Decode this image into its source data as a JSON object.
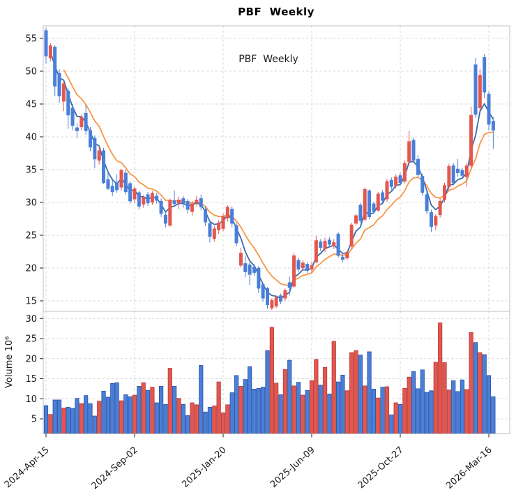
{
  "figure": {
    "title": "PBF  Weekly",
    "annotation": "PBF  Weekly"
  },
  "chart_data": {
    "type": "candlestick",
    "title": "PBF  Weekly",
    "subtitle_annotation": "PBF  Weekly",
    "legend_position": "none",
    "grid": "dashed",
    "price_axis": {
      "ticks": [
        15,
        20,
        25,
        30,
        35,
        40,
        45,
        50,
        55
      ],
      "lim": [
        13.4,
        56.9
      ]
    },
    "volume_axis": {
      "label": "Volume 10⁶",
      "ticks": [
        5,
        10,
        15,
        20,
        25,
        30
      ],
      "lim": [
        1.2,
        31.6
      ]
    },
    "x_axis": {
      "tick_week_indices": [
        0,
        20,
        40,
        60,
        80,
        100
      ],
      "tick_labels": [
        "2024-Apr-15",
        "2024-Sep-02",
        "2025-Jan-20",
        "2025-Jun-09",
        "2025-Oct-27",
        "2026-Mar-16"
      ],
      "rotation_deg": -42
    },
    "moving_averages": {
      "fast_period": 4,
      "slow_period": 10
    },
    "colors": {
      "up": "#e3574f",
      "up_edge": "#b23b3b",
      "down": "#4a7fd9",
      "down_edge": "#2a52a0",
      "ma_fast": "#3a6ba8",
      "ma_slow": "#f79646",
      "grid": "#d9d9d9",
      "spine": "#c0c0c0",
      "tick": "#333333",
      "text": "#1a1a1a"
    },
    "series": {
      "ohlc": [
        [
          56.2,
          56.6,
          51.2,
          52.3
        ],
        [
          52.0,
          54.3,
          51.5,
          53.9
        ],
        [
          53.7,
          54.0,
          46.2,
          47.7
        ],
        [
          49.7,
          50.3,
          45.2,
          46.2
        ],
        [
          45.4,
          48.5,
          43.9,
          48.1
        ],
        [
          47.0,
          47.4,
          41.2,
          43.3
        ],
        [
          44.4,
          45.0,
          41.0,
          41.7
        ],
        [
          41.4,
          42.1,
          39.8,
          40.9
        ],
        [
          41.5,
          43.4,
          41.0,
          43.0
        ],
        [
          43.6,
          44.9,
          40.3,
          40.9
        ],
        [
          41.0,
          41.5,
          37.8,
          38.4
        ],
        [
          39.8,
          40.2,
          35.2,
          36.6
        ],
        [
          36.4,
          38.6,
          35.8,
          37.9
        ],
        [
          37.9,
          38.3,
          32.8,
          33.0
        ],
        [
          33.5,
          34.8,
          31.9,
          32.1
        ],
        [
          32.5,
          33.7,
          31.0,
          31.6
        ],
        [
          33.0,
          34.3,
          31.5,
          31.9
        ],
        [
          32.3,
          35.1,
          31.8,
          34.9
        ],
        [
          34.5,
          35.0,
          31.2,
          31.6
        ],
        [
          32.9,
          33.2,
          29.8,
          30.2
        ],
        [
          30.5,
          32.4,
          29.9,
          32.1
        ],
        [
          31.5,
          31.8,
          28.9,
          29.4
        ],
        [
          29.7,
          31.1,
          29.2,
          30.8
        ],
        [
          31.2,
          31.6,
          29.5,
          29.9
        ],
        [
          30.0,
          31.7,
          29.6,
          31.4
        ],
        [
          31.0,
          31.5,
          29.8,
          30.3
        ],
        [
          30.2,
          30.6,
          27.8,
          28.3
        ],
        [
          28.1,
          28.5,
          26.2,
          26.8
        ],
        [
          26.5,
          30.6,
          26.3,
          30.3
        ],
        [
          30.3,
          31.8,
          29.3,
          29.8
        ],
        [
          29.9,
          30.9,
          29.0,
          30.4
        ],
        [
          30.6,
          31.0,
          29.2,
          29.9
        ],
        [
          30.2,
          30.5,
          28.3,
          28.9
        ],
        [
          28.6,
          30.2,
          28.0,
          29.8
        ],
        [
          29.9,
          31.0,
          29.4,
          30.4
        ],
        [
          30.6,
          31.2,
          28.8,
          29.3
        ],
        [
          29.0,
          29.4,
          26.4,
          27.0
        ],
        [
          26.8,
          27.2,
          23.9,
          24.8
        ],
        [
          24.5,
          26.4,
          24.0,
          26.0
        ],
        [
          25.8,
          27.3,
          25.2,
          26.9
        ],
        [
          26.0,
          28.3,
          25.6,
          27.9
        ],
        [
          27.6,
          29.6,
          27.1,
          29.3
        ],
        [
          29.0,
          29.4,
          26.2,
          26.8
        ],
        [
          26.5,
          26.9,
          23.3,
          23.8
        ],
        [
          20.4,
          23.1,
          20.1,
          22.3
        ],
        [
          20.7,
          21.9,
          18.6,
          19.4
        ],
        [
          20.5,
          20.9,
          17.4,
          19.0
        ],
        [
          20.2,
          20.6,
          18.8,
          19.3
        ],
        [
          20.0,
          20.3,
          16.2,
          16.9
        ],
        [
          17.5,
          17.8,
          14.9,
          15.4
        ],
        [
          16.9,
          17.1,
          13.8,
          14.4
        ],
        [
          13.9,
          15.4,
          13.6,
          15.1
        ],
        [
          14.2,
          15.8,
          13.9,
          15.5
        ],
        [
          15.8,
          16.1,
          14.5,
          14.9
        ],
        [
          15.4,
          16.9,
          15.0,
          16.6
        ],
        [
          17.8,
          18.7,
          15.8,
          17.0
        ],
        [
          17.2,
          22.3,
          17.0,
          21.9
        ],
        [
          21.2,
          21.6,
          19.4,
          19.8
        ],
        [
          20.0,
          21.2,
          19.6,
          20.8
        ],
        [
          20.6,
          20.9,
          19.2,
          19.6
        ],
        [
          19.8,
          21.0,
          19.3,
          20.4
        ],
        [
          20.9,
          24.9,
          20.7,
          24.2
        ],
        [
          24.0,
          24.4,
          22.6,
          23.1
        ],
        [
          22.9,
          24.6,
          22.4,
          24.1
        ],
        [
          24.3,
          24.7,
          23.2,
          23.6
        ],
        [
          23.4,
          24.4,
          22.9,
          23.9
        ],
        [
          25.2,
          25.5,
          21.6,
          21.9
        ],
        [
          21.7,
          22.3,
          20.9,
          21.3
        ],
        [
          21.5,
          22.6,
          21.2,
          22.4
        ],
        [
          23.3,
          26.9,
          23.0,
          26.6
        ],
        [
          26.8,
          28.3,
          26.5,
          28.0
        ],
        [
          29.6,
          29.9,
          26.9,
          27.2
        ],
        [
          27.4,
          32.3,
          27.1,
          32.0
        ],
        [
          31.8,
          32.0,
          27.4,
          27.8
        ],
        [
          29.8,
          30.1,
          28.3,
          28.6
        ],
        [
          28.8,
          31.6,
          28.5,
          31.3
        ],
        [
          31.5,
          31.9,
          29.9,
          30.3
        ],
        [
          30.5,
          33.6,
          30.1,
          33.2
        ],
        [
          33.4,
          33.8,
          31.9,
          32.4
        ],
        [
          32.6,
          34.3,
          32.1,
          33.9
        ],
        [
          34.1,
          34.5,
          32.6,
          33.0
        ],
        [
          33.2,
          36.4,
          32.9,
          36.0
        ],
        [
          36.2,
          40.9,
          35.7,
          39.3
        ],
        [
          39.5,
          39.9,
          36.0,
          36.4
        ],
        [
          36.6,
          37.2,
          33.8,
          34.2
        ],
        [
          34.0,
          34.4,
          31.0,
          31.5
        ],
        [
          31.2,
          31.6,
          28.2,
          28.7
        ],
        [
          28.5,
          28.9,
          25.5,
          26.3
        ],
        [
          26.5,
          28.2,
          25.8,
          27.9
        ],
        [
          28.1,
          30.6,
          27.7,
          30.2
        ],
        [
          30.4,
          33.0,
          30.0,
          32.6
        ],
        [
          32.4,
          35.9,
          31.9,
          35.5
        ],
        [
          35.6,
          36.0,
          32.6,
          33.0
        ],
        [
          35.1,
          36.6,
          33.9,
          34.5
        ],
        [
          34.9,
          35.3,
          33.6,
          34.1
        ],
        [
          33.9,
          36.0,
          32.4,
          35.6
        ],
        [
          35.6,
          44.6,
          35.2,
          43.3
        ],
        [
          51.0,
          52.0,
          42.9,
          43.4
        ],
        [
          44.4,
          50.3,
          43.9,
          49.4
        ],
        [
          52.1,
          52.6,
          45.9,
          46.8
        ],
        [
          46.5,
          46.9,
          41.0,
          41.9
        ],
        [
          42.4,
          43.0,
          38.2,
          41.0
        ]
      ],
      "volume": [
        8.3,
        6.1,
        9.7,
        9.7,
        7.7,
        7.9,
        7.6,
        10.1,
        8.8,
        10.8,
        8.8,
        5.7,
        9.4,
        11.9,
        10.4,
        13.8,
        14.0,
        9.5,
        11.0,
        10.5,
        10.9,
        13.1,
        14.0,
        12.1,
        12.9,
        9.0,
        13.1,
        8.6,
        17.6,
        13.1,
        10.1,
        8.6,
        5.8,
        9.0,
        8.5,
        18.3,
        6.7,
        7.9,
        8.2,
        14.2,
        6.5,
        8.5,
        11.5,
        15.8,
        13.1,
        14.8,
        18.0,
        12.4,
        12.6,
        12.9,
        22.0,
        27.8,
        13.9,
        11.0,
        17.3,
        19.6,
        13.2,
        14.1,
        10.9,
        12.1,
        14.5,
        19.8,
        13.4,
        17.8,
        11.2,
        24.3,
        14.2,
        15.9,
        12.0,
        21.5,
        22.0,
        20.9,
        13.2,
        21.7,
        12.4,
        10.2,
        12.9,
        13.0,
        6.0,
        9.0,
        8.6,
        12.6,
        15.4,
        16.8,
        12.5,
        17.2,
        11.6,
        12.0,
        19.1,
        28.9,
        19.0,
        12.2,
        14.5,
        11.8,
        14.7,
        12.3,
        26.5,
        24.0,
        21.5,
        21.0,
        15.8,
        10.5
      ]
    }
  }
}
